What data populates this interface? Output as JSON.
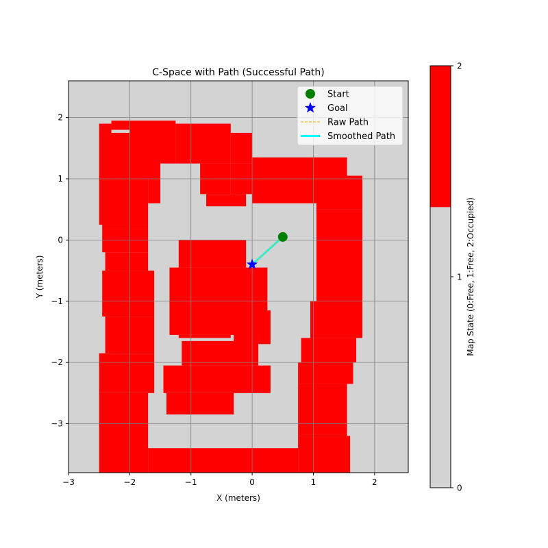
{
  "chart_data": {
    "type": "heatmap",
    "title": "C-Space with Path (Successful Path)",
    "xlabel": "X (meters)",
    "ylabel": "Y (meters)",
    "xlim": [
      -3.0,
      2.55
    ],
    "ylim": [
      -3.8,
      2.6
    ],
    "grid": true,
    "xticks": [
      -3,
      -2,
      -1,
      0,
      1,
      2
    ],
    "yticks": [
      -3,
      -2,
      -1,
      0,
      1,
      2
    ],
    "xtick_labels": [
      "−3",
      "−2",
      "−1",
      "0",
      "1",
      "2"
    ],
    "ytick_labels": [
      "−3",
      "−2",
      "−1",
      "0",
      "1",
      "2"
    ],
    "colors": {
      "free": "#d3d3d3",
      "occupied": "#ff0000",
      "grid": "#808080"
    },
    "occupied_regions": [
      [
        -2.5,
        1.75,
        -2.3,
        1.9
      ],
      [
        -2.3,
        1.8,
        -2.0,
        1.95
      ],
      [
        -2.0,
        1.25,
        -1.25,
        1.95
      ],
      [
        -1.25,
        1.25,
        -0.35,
        1.9
      ],
      [
        -0.35,
        1.25,
        0.0,
        1.75
      ],
      [
        -0.85,
        0.75,
        -0.35,
        1.25
      ],
      [
        -0.35,
        0.75,
        0.0,
        1.25
      ],
      [
        0.0,
        1.0,
        1.55,
        1.35
      ],
      [
        -0.75,
        0.55,
        -0.1,
        0.75
      ],
      [
        -2.5,
        1.0,
        -1.5,
        1.75
      ],
      [
        -2.5,
        0.25,
        -1.7,
        1.0
      ],
      [
        -1.7,
        0.6,
        -1.5,
        1.0
      ],
      [
        -2.45,
        -0.2,
        -1.7,
        0.25
      ],
      [
        -2.4,
        -0.5,
        -1.7,
        -0.2
      ],
      [
        -2.45,
        -1.25,
        -1.6,
        -0.5
      ],
      [
        -2.4,
        -1.85,
        -1.6,
        -1.25
      ],
      [
        -2.5,
        -2.5,
        -1.6,
        -1.85
      ],
      [
        -2.5,
        -3.8,
        -1.7,
        -2.5
      ],
      [
        -1.7,
        -3.8,
        0.75,
        -3.4
      ],
      [
        0.75,
        -3.8,
        1.6,
        -3.2
      ],
      [
        0.75,
        -3.2,
        1.55,
        -2.35
      ],
      [
        0.75,
        -2.35,
        1.65,
        -2.0
      ],
      [
        0.8,
        -2.0,
        1.7,
        -1.6
      ],
      [
        0.95,
        -1.6,
        1.8,
        -1.0
      ],
      [
        1.05,
        -1.0,
        1.8,
        0.5
      ],
      [
        1.05,
        0.5,
        1.8,
        1.05
      ],
      [
        0.0,
        0.6,
        1.05,
        1.0
      ],
      [
        -1.2,
        -0.45,
        -0.1,
        0.0
      ],
      [
        -1.35,
        -1.55,
        0.25,
        -0.45
      ],
      [
        0.1,
        -1.7,
        0.3,
        -1.15
      ],
      [
        -1.2,
        -1.6,
        -0.35,
        -1.55
      ],
      [
        -0.3,
        -1.7,
        0.1,
        -1.35
      ],
      [
        -1.15,
        -2.05,
        0.1,
        -1.65
      ],
      [
        -1.45,
        -2.5,
        0.3,
        -2.05
      ],
      [
        -1.4,
        -2.85,
        -0.3,
        -2.5
      ]
    ],
    "series": [
      {
        "name": "Start",
        "marker": "circle",
        "color": "#008000",
        "x": [
          0.5
        ],
        "y": [
          0.05
        ]
      },
      {
        "name": "Goal",
        "marker": "star",
        "color": "#0000ff",
        "x": [
          0.0
        ],
        "y": [
          -0.4
        ]
      },
      {
        "name": "Raw Path",
        "style": "dashed",
        "color": "#ffa500",
        "x": [
          0.5,
          0.0
        ],
        "y": [
          0.05,
          -0.4
        ]
      },
      {
        "name": "Smoothed Path",
        "style": "solid",
        "color": "#00ffff",
        "x": [
          0.5,
          0.0
        ],
        "y": [
          0.05,
          -0.4
        ]
      }
    ],
    "legend": {
      "placement": "top-right"
    },
    "colorbar": {
      "label": "Map State (0:Free, 1:Free, 2:Occupied)",
      "range": [
        0,
        2
      ],
      "ticks": [
        0,
        1,
        2
      ],
      "tick_labels": [
        "0",
        "1",
        "2"
      ],
      "bands": [
        {
          "from": 0,
          "to": 1.33,
          "color": "#d3d3d3"
        },
        {
          "from": 1.33,
          "to": 2,
          "color": "#ff0000"
        }
      ]
    }
  }
}
